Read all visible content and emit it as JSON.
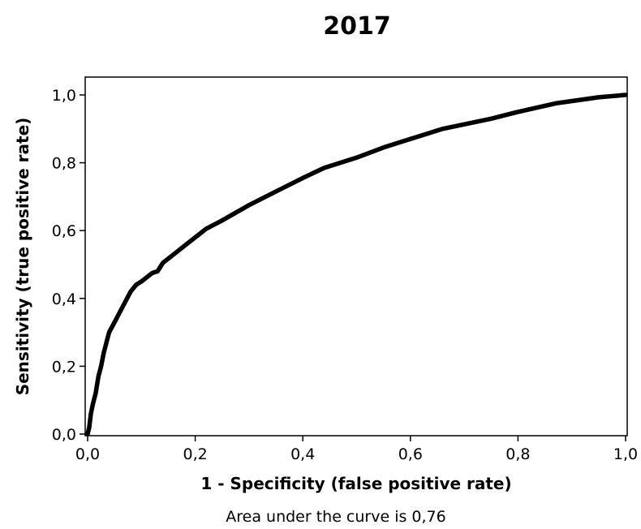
{
  "chart_data": {
    "type": "line",
    "title": "2017",
    "xlabel": "1 - Specificity (false positive rate)",
    "ylabel": "Sensitivity (true positive rate)",
    "annotation": "Area under the curve is 0,76",
    "xlim": [
      0,
      1
    ],
    "ylim": [
      0,
      1
    ],
    "x_ticks": [
      0.0,
      0.2,
      0.4,
      0.6,
      0.8,
      1.0
    ],
    "y_ticks": [
      0.0,
      0.2,
      0.4,
      0.6,
      0.8,
      1.0
    ],
    "x_tick_labels": [
      "0,0",
      "0,2",
      "0,4",
      "0,6",
      "0,8",
      "1,0"
    ],
    "y_tick_labels": [
      "0,0",
      "0,2",
      "0,4",
      "0,6",
      "0,8",
      "1,0"
    ],
    "grid": false,
    "line_color": "#000000",
    "series": [
      {
        "x": [
          0.0,
          0.003,
          0.006,
          0.01,
          0.015,
          0.02,
          0.025,
          0.03,
          0.035,
          0.04,
          0.05,
          0.06,
          0.07,
          0.08,
          0.09,
          0.1,
          0.12,
          0.13,
          0.14,
          0.16,
          0.18,
          0.2,
          0.22,
          0.25,
          0.3,
          0.35,
          0.4,
          0.44,
          0.5,
          0.55,
          0.6,
          0.66,
          0.75,
          0.8,
          0.87,
          0.95,
          1.0
        ],
        "y": [
          0.0,
          0.02,
          0.06,
          0.09,
          0.12,
          0.17,
          0.2,
          0.24,
          0.27,
          0.3,
          0.33,
          0.36,
          0.39,
          0.42,
          0.44,
          0.45,
          0.475,
          0.48,
          0.505,
          0.53,
          0.555,
          0.58,
          0.605,
          0.63,
          0.675,
          0.715,
          0.755,
          0.785,
          0.815,
          0.845,
          0.87,
          0.9,
          0.93,
          0.95,
          0.975,
          0.993,
          1.0
        ]
      }
    ]
  }
}
